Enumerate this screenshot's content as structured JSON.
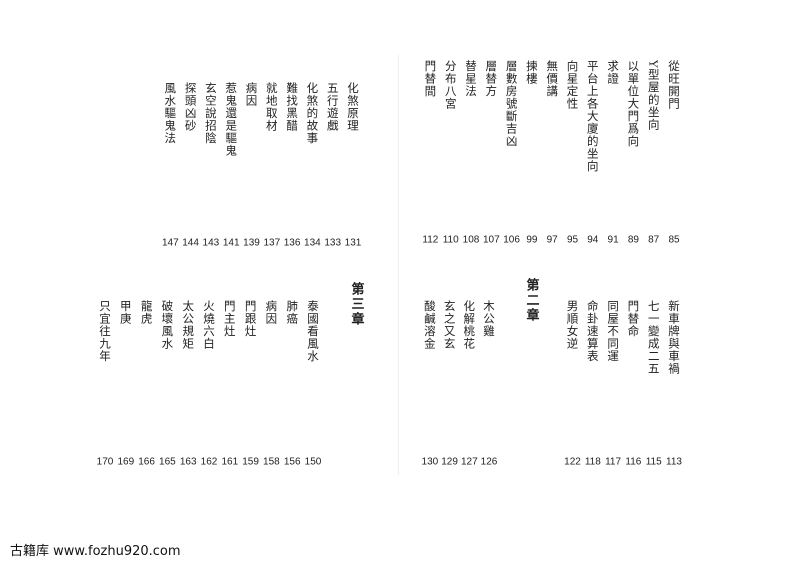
{
  "right_page": {
    "top_entries": [
      {
        "title": "從旺開門",
        "page": 85
      },
      {
        "title": "Y型屋的坐向",
        "page": 87
      },
      {
        "title": "以單位大門爲向",
        "page": 89
      },
      {
        "title": "求證",
        "page": 91
      },
      {
        "title": "平台上各大廈的坐向",
        "page": 94
      },
      {
        "title": "向星定性",
        "page": 95
      },
      {
        "title": "無價講",
        "page": 97
      },
      {
        "title": "揀樓",
        "page": 99
      },
      {
        "title": "層數房號斷吉凶",
        "page": 106
      },
      {
        "title": "層替方",
        "page": 107
      },
      {
        "title": "替星法",
        "page": 108
      },
      {
        "title": "分布八宮",
        "page": 110
      },
      {
        "title": "門替間",
        "page": 112
      }
    ],
    "bottom_entries_before_heading": [
      {
        "title": "新車牌與車禍",
        "page": 113
      },
      {
        "title": "七一變成二五",
        "page": 115
      },
      {
        "title": "門替命",
        "page": 116
      },
      {
        "title": "同屋不同運",
        "page": 117
      },
      {
        "title": "命卦速算表",
        "page": 118
      },
      {
        "title": "男順女逆",
        "page": 122
      }
    ],
    "chapter_heading": "第二章",
    "bottom_entries_after_heading": [
      {
        "title": "木公雞",
        "page": 126
      },
      {
        "title": "化解桃花",
        "page": 127
      },
      {
        "title": "玄之又玄",
        "page": 129
      },
      {
        "title": "酸鹹溶金",
        "page": 130
      }
    ]
  },
  "left_page": {
    "top_entries": [
      {
        "title": "化煞原理",
        "page": 131
      },
      {
        "title": "五行遊戲",
        "page": 133
      },
      {
        "title": "化煞的故事",
        "page": 134
      },
      {
        "title": "難找黑醋",
        "page": 136
      },
      {
        "title": "就地取材",
        "page": 137
      },
      {
        "title": "病因",
        "page": 139
      },
      {
        "title": "惹鬼還是驅鬼",
        "page": 141
      },
      {
        "title": "玄空說招陰",
        "page": 143
      },
      {
        "title": "探頭凶砂",
        "page": 144
      },
      {
        "title": "風水驅鬼法",
        "page": 147
      }
    ],
    "chapter_heading": "第三章",
    "bottom_entries": [
      {
        "title": "泰國看風水",
        "page": 150
      },
      {
        "title": "肺癌",
        "page": 156
      },
      {
        "title": "病因",
        "page": 158
      },
      {
        "title": "門跟灶",
        "page": 159
      },
      {
        "title": "門主灶",
        "page": 161
      },
      {
        "title": "火燒六白",
        "page": 162
      },
      {
        "title": "太公規矩",
        "page": 163
      },
      {
        "title": "破壞風水",
        "page": 165
      },
      {
        "title": "龍虎",
        "page": 166
      },
      {
        "title": "甲庚",
        "page": 169
      },
      {
        "title": "只宜往九年",
        "page": 170
      }
    ]
  },
  "footer": {
    "site_name": "古籍库",
    "url": "www.fozhu920.com"
  }
}
